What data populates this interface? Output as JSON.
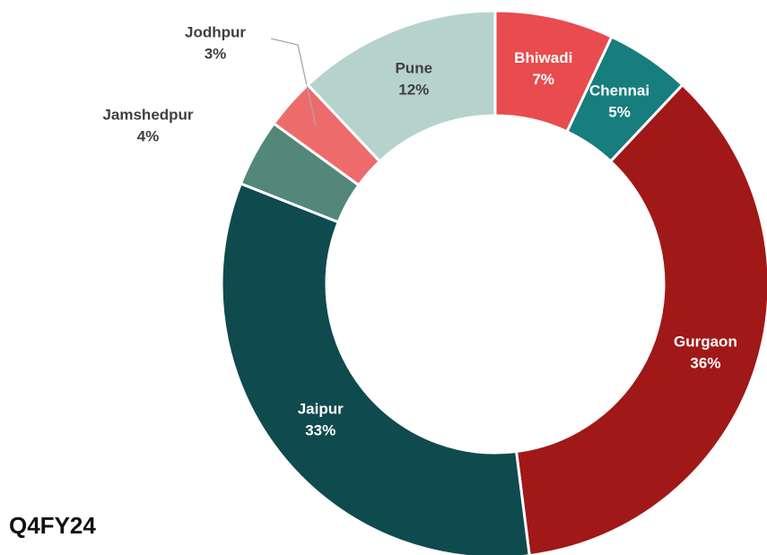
{
  "chart_data": {
    "type": "pie",
    "title": "Q4FY24",
    "categories": [
      "Bhiwadi",
      "Chennai",
      "Gurgaon",
      "Jaipur",
      "Jamshedpur",
      "Jodhpur",
      "Pune"
    ],
    "values": [
      7,
      5,
      36,
      33,
      4,
      3,
      12
    ],
    "value_labels": [
      "7%",
      "5%",
      "36%",
      "33%",
      "4%",
      "3%",
      "12%"
    ],
    "colors": [
      "#e84c4f",
      "#177d7d",
      "#a01818",
      "#0f4a4f",
      "#52877a",
      "#ee6b6b",
      "#b5d3cc"
    ]
  }
}
